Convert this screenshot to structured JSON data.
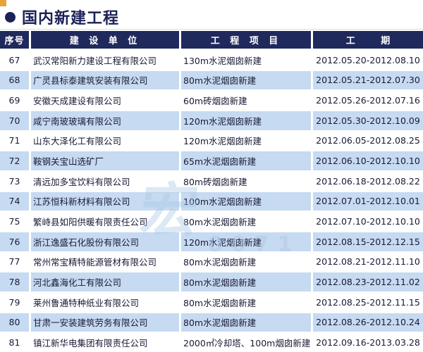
{
  "title": "国内新建工程",
  "colors": {
    "header_bg": "#20295c",
    "title_color": "#1c2257",
    "row_alt_bg": "#c6daf1",
    "corner_marker": "#e9a23b",
    "cell_text": "#191935"
  },
  "table": {
    "headers": {
      "no": "序号",
      "company": "建 设 单 位",
      "project": "工 程 项 目",
      "period": "工 期"
    },
    "rows": [
      {
        "no": "67",
        "company": "武汉常阳新力建设工程有限公司",
        "project": "130m水泥烟囱新建",
        "period": "2012.05.20-2012.08.10"
      },
      {
        "no": "68",
        "company": "广灵县标泰建筑安装有限公司",
        "project": "80m水泥烟囱新建",
        "period": "2012.05.21-2012.07.30"
      },
      {
        "no": "69",
        "company": "安徽天成建设有限公司",
        "project": "60m砖烟囱新建",
        "period": "2012.05.26-2012.07.16"
      },
      {
        "no": "70",
        "company": "咸宁南玻玻璃有限公司",
        "project": "120m水泥烟囱新建",
        "period": "2012.05.30-2012.10.09"
      },
      {
        "no": "71",
        "company": "山东大泽化工有限公司",
        "project": "120m水泥烟囱新建",
        "period": "2012.06.05-2012.08.25"
      },
      {
        "no": "72",
        "company": "鞍钢关宝山选矿厂",
        "project": "65m水泥烟囱新建",
        "period": "2012.06.10-2012.10.10"
      },
      {
        "no": "73",
        "company": "清远加多宝饮料有限公司",
        "project": "80m砖烟囱新建",
        "period": "2012.06.18-2012.08.22"
      },
      {
        "no": "74",
        "company": "江苏恒科新材料有限公司",
        "project": "100m水泥烟囱新建",
        "period": "2012.07.01-2012.10.01"
      },
      {
        "no": "75",
        "company": "繁峙县如阳供暖有限责任公司",
        "project": "80m水泥烟囱新建",
        "period": "2012.07.10-2012.10.10"
      },
      {
        "no": "76",
        "company": "浙江逸盛石化股份有限公司",
        "project": "120m水泥烟囱新建",
        "period": "2012.08.15-2012.12.15"
      },
      {
        "no": "77",
        "company": "常州常宝精特能源管材有限公司",
        "project": "80m水泥烟囱新建",
        "period": "2012.08.21-2012.11.10"
      },
      {
        "no": "78",
        "company": "河北鑫海化工有限公司",
        "project": "80m水泥烟囱新建",
        "period": "2012.08.23-2012.11.02"
      },
      {
        "no": "79",
        "company": "莱州鲁通特种纸业有限公司",
        "project": "80m水泥烟囱新建",
        "period": "2012.08.25-2012.11.15"
      },
      {
        "no": "80",
        "company": "甘肃一安装建筑劳务有限公司",
        "project": "80m水泥烟囱新建",
        "period": "2012.08.26-2012.10.24"
      },
      {
        "no": "81",
        "company": "镇江新华电集团有限责任公司",
        "project": "2000㎡冷却塔、100m烟囱新建",
        "period": "2012.09.16-2013.03.28"
      }
    ]
  },
  "watermark": {
    "fragments": [
      "宏",
      "0071"
    ]
  }
}
